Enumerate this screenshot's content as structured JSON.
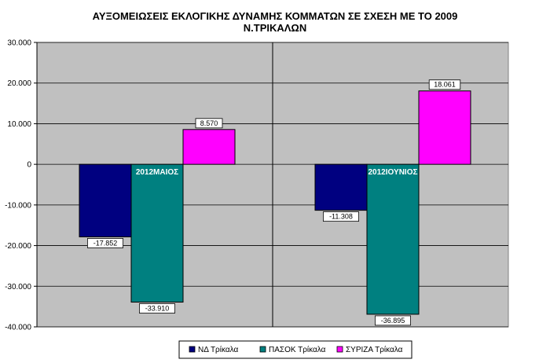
{
  "chart_data": {
    "type": "bar",
    "title_line1": "ΑΥΞΟΜΕΙΩΣΕΙΣ ΕΚΛΟΓΙΚΗΣ ΔΥΝΑΜΗΣ ΚΟΜΜΑΤΩΝ ΣΕ ΣΧΕΣΗ ΜΕ ΤΟ 2009",
    "title_line2": "Ν.ΤΡΙΚΑΛΩΝ",
    "categories": [
      "2012ΜΑΙΟΣ",
      "2012ΙΟΥΝΙΟΣ"
    ],
    "series": [
      {
        "name": "ΝΔ Τρίκαλα",
        "color": "#000080",
        "values": [
          -17852,
          -11308
        ],
        "labels": [
          "-17.852",
          "-11.308"
        ]
      },
      {
        "name": "ΠΑΣΟΚ Τρίκαλα",
        "color": "#008080",
        "values": [
          -33910,
          -36895
        ],
        "labels": [
          "-33.910",
          "-36.895"
        ]
      },
      {
        "name": "ΣΥΡΙΖΑ Τρίκαλα",
        "color": "#ff00ff",
        "values": [
          8570,
          18061
        ],
        "labels": [
          "8.570",
          "18.061"
        ]
      }
    ],
    "ylim": [
      -40000,
      30000
    ],
    "yticks": [
      30000,
      20000,
      10000,
      0,
      -10000,
      -20000,
      -30000,
      -40000
    ],
    "ytick_labels": [
      "30.000",
      "20.000",
      "10.000",
      "0",
      "-10.000",
      "-20.000",
      "-30.000",
      "-40.000"
    ],
    "plot_background": "#c0c0c0",
    "grid": true,
    "legend_position": "bottom"
  }
}
